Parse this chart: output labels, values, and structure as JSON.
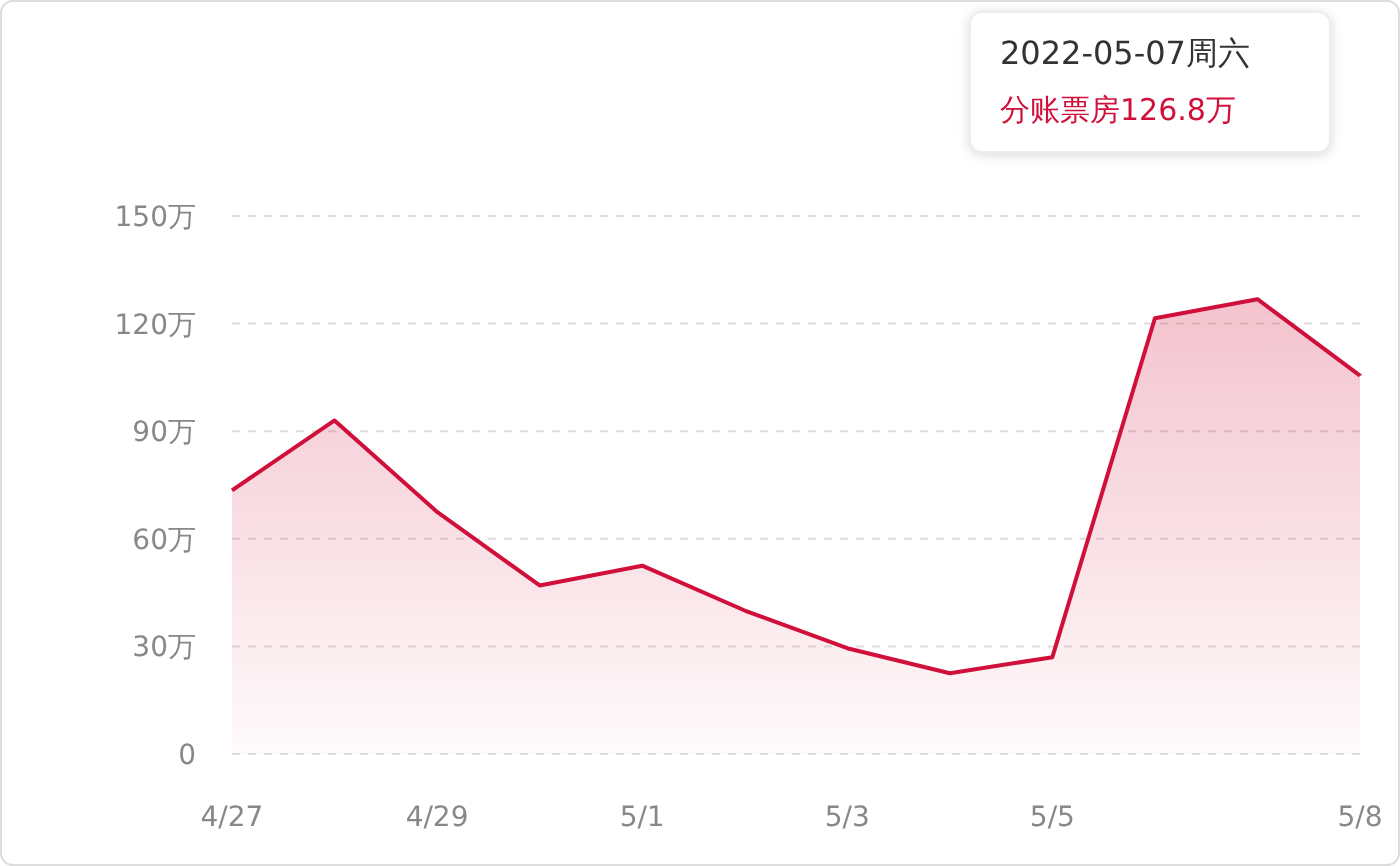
{
  "chart_data": {
    "type": "area",
    "categories": [
      "4/27",
      null,
      "4/29",
      null,
      "5/1",
      null,
      "5/3",
      null,
      "5/5",
      null,
      null,
      "5/8"
    ],
    "series": [
      {
        "color": "#d0103a",
        "values": [
          73.5,
          93,
          67.5,
          47,
          52.5,
          40,
          29.5,
          22.5,
          27,
          121.5,
          126.8,
          105.5
        ]
      }
    ],
    "ylim": [
      0,
      150
    ],
    "yticks": [
      0,
      {
        "value": 30,
        "label": "30万"
      },
      {
        "value": 60,
        "label": "60万"
      },
      {
        "value": 90,
        "label": "90万"
      },
      {
        "value": 120,
        "label": "120万"
      },
      {
        "value": 150,
        "label": "150万"
      }
    ],
    "grid": "y",
    "annotations": [
      "2022-05-07周六",
      "分账票房126.8万"
    ]
  }
}
